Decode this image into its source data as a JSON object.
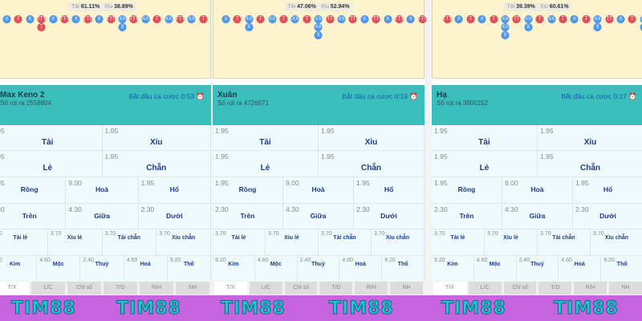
{
  "panels": [
    {
      "name": "Max Keno 2",
      "draw": "Số rút ra 2558804",
      "timer": "Bắt đầu cá cược 0:53",
      "stat": {
        "tai_label": "Tài",
        "tai": "61.11%",
        "xiu_label": "Xỉu",
        "xiu": "38.89%"
      },
      "road": [
        "X",
        "T",
        "X",
        "TTTT",
        "X",
        "TTT",
        "X",
        "TTT",
        "X",
        "TTT",
        "XXX",
        "TTT",
        "XX",
        "T",
        "XX",
        "TTT",
        "XX",
        "T"
      ]
    },
    {
      "name": "Xuân",
      "draw": "Số rút ra 4726671",
      "timer": "Bắt đầu cá cược 0:19",
      "stat": {
        "tai_label": "Tài",
        "tai": "47.06%",
        "xiu_label": "Xỉu",
        "xiu": "52.94%"
      },
      "road": [
        "X",
        "T",
        "XXX",
        "T",
        "XX",
        "T",
        "XX",
        "T",
        "XXXXX",
        "TT",
        "XX",
        "TT",
        "X",
        "TT",
        "X",
        "TTT",
        "X",
        "TTT"
      ]
    },
    {
      "name": "Hạ",
      "draw": "Số rút ra 3800152",
      "timer": "Bắt đầu cá cược 0:17",
      "stat": {
        "tai_label": "Tài",
        "tai": "39.39%",
        "xiu_label": "Xỉu",
        "xiu": "60.61%"
      },
      "road": [
        "TTT",
        "X",
        "T",
        "X",
        "T",
        "XXXXX",
        "TT",
        "XXX",
        "T",
        "XX",
        "T",
        "X",
        "T",
        "XXX",
        "TT",
        "X",
        "T",
        "XXX"
      ]
    }
  ],
  "rows": [
    {
      "size": 10,
      "cells": [
        {
          "odd": "1.95",
          "label": "Tài"
        },
        {
          "odd": "1.95",
          "label": "Xỉu"
        }
      ]
    },
    {
      "size": 10,
      "cells": [
        {
          "odd": "1.95",
          "label": "Lẻ"
        },
        {
          "odd": "1.95",
          "label": "Chẵn"
        }
      ]
    },
    {
      "size": 8.5,
      "cells": [
        {
          "odd": "1.95",
          "label": "Rồng"
        },
        {
          "odd": "9.00",
          "label": "Hoà"
        },
        {
          "odd": "1.95",
          "label": "Hổ"
        }
      ]
    },
    {
      "size": 8.5,
      "cells": [
        {
          "odd": "2.30",
          "label": "Trên"
        },
        {
          "odd": "4.30",
          "label": "Giữa"
        },
        {
          "odd": "2.30",
          "label": "Dưới"
        }
      ]
    },
    {
      "size": 7,
      "cells": [
        {
          "odd": "3.70",
          "label": "Tài lẻ"
        },
        {
          "odd": "3.70",
          "label": "Xỉu lẻ"
        },
        {
          "odd": "3.70",
          "label": "Tài chẵn"
        },
        {
          "odd": "3.70",
          "label": "Xỉu chẵn"
        }
      ]
    },
    {
      "size": 7,
      "cells": [
        {
          "odd": "9.20",
          "label": "Kim"
        },
        {
          "odd": "4.60",
          "label": "Mộc"
        },
        {
          "odd": "2.40",
          "label": "Thuỷ"
        },
        {
          "odd": "4.60",
          "label": "Hoả"
        },
        {
          "odd": "9.20",
          "label": "Thổ"
        }
      ]
    }
  ],
  "tabs": [
    "T/X",
    "L/C",
    "Chỉ số",
    "T/D",
    "R/H",
    "NH"
  ],
  "colors": {
    "tai": "#e0505a",
    "xiu": "#4f97e8",
    "header": "#3bbfbd",
    "band": "#c664e0"
  },
  "watermark": "TIM88"
}
